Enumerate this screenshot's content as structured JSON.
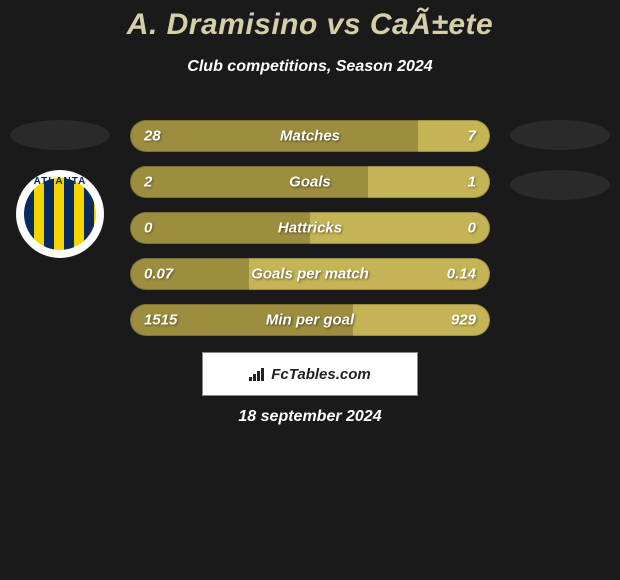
{
  "title": "A. Dramisino vs CaÃ±ete",
  "subtitle": "Club competitions, Season 2024",
  "date": "18 september 2024",
  "footer_brand": "FcTables.com",
  "colors": {
    "background": "#1a1a1a",
    "title": "#d4cfa8",
    "text_white": "#ffffff",
    "bar_left": "#9c8e3e",
    "bar_right": "#c4b456",
    "ellipse_dark": "#2a2a2a",
    "badge_stripe_blue": "#0a2a5c",
    "badge_stripe_yellow": "#f5d400"
  },
  "badge_text": "ATLANTA",
  "bars": [
    {
      "label": "Matches",
      "left": "28",
      "right": "7",
      "left_pct": 80
    },
    {
      "label": "Goals",
      "left": "2",
      "right": "1",
      "left_pct": 66
    },
    {
      "label": "Hattricks",
      "left": "0",
      "right": "0",
      "left_pct": 50
    },
    {
      "label": "Goals per match",
      "left": "0.07",
      "right": "0.14",
      "left_pct": 33
    },
    {
      "label": "Min per goal",
      "left": "1515",
      "right": "929",
      "left_pct": 62
    }
  ]
}
